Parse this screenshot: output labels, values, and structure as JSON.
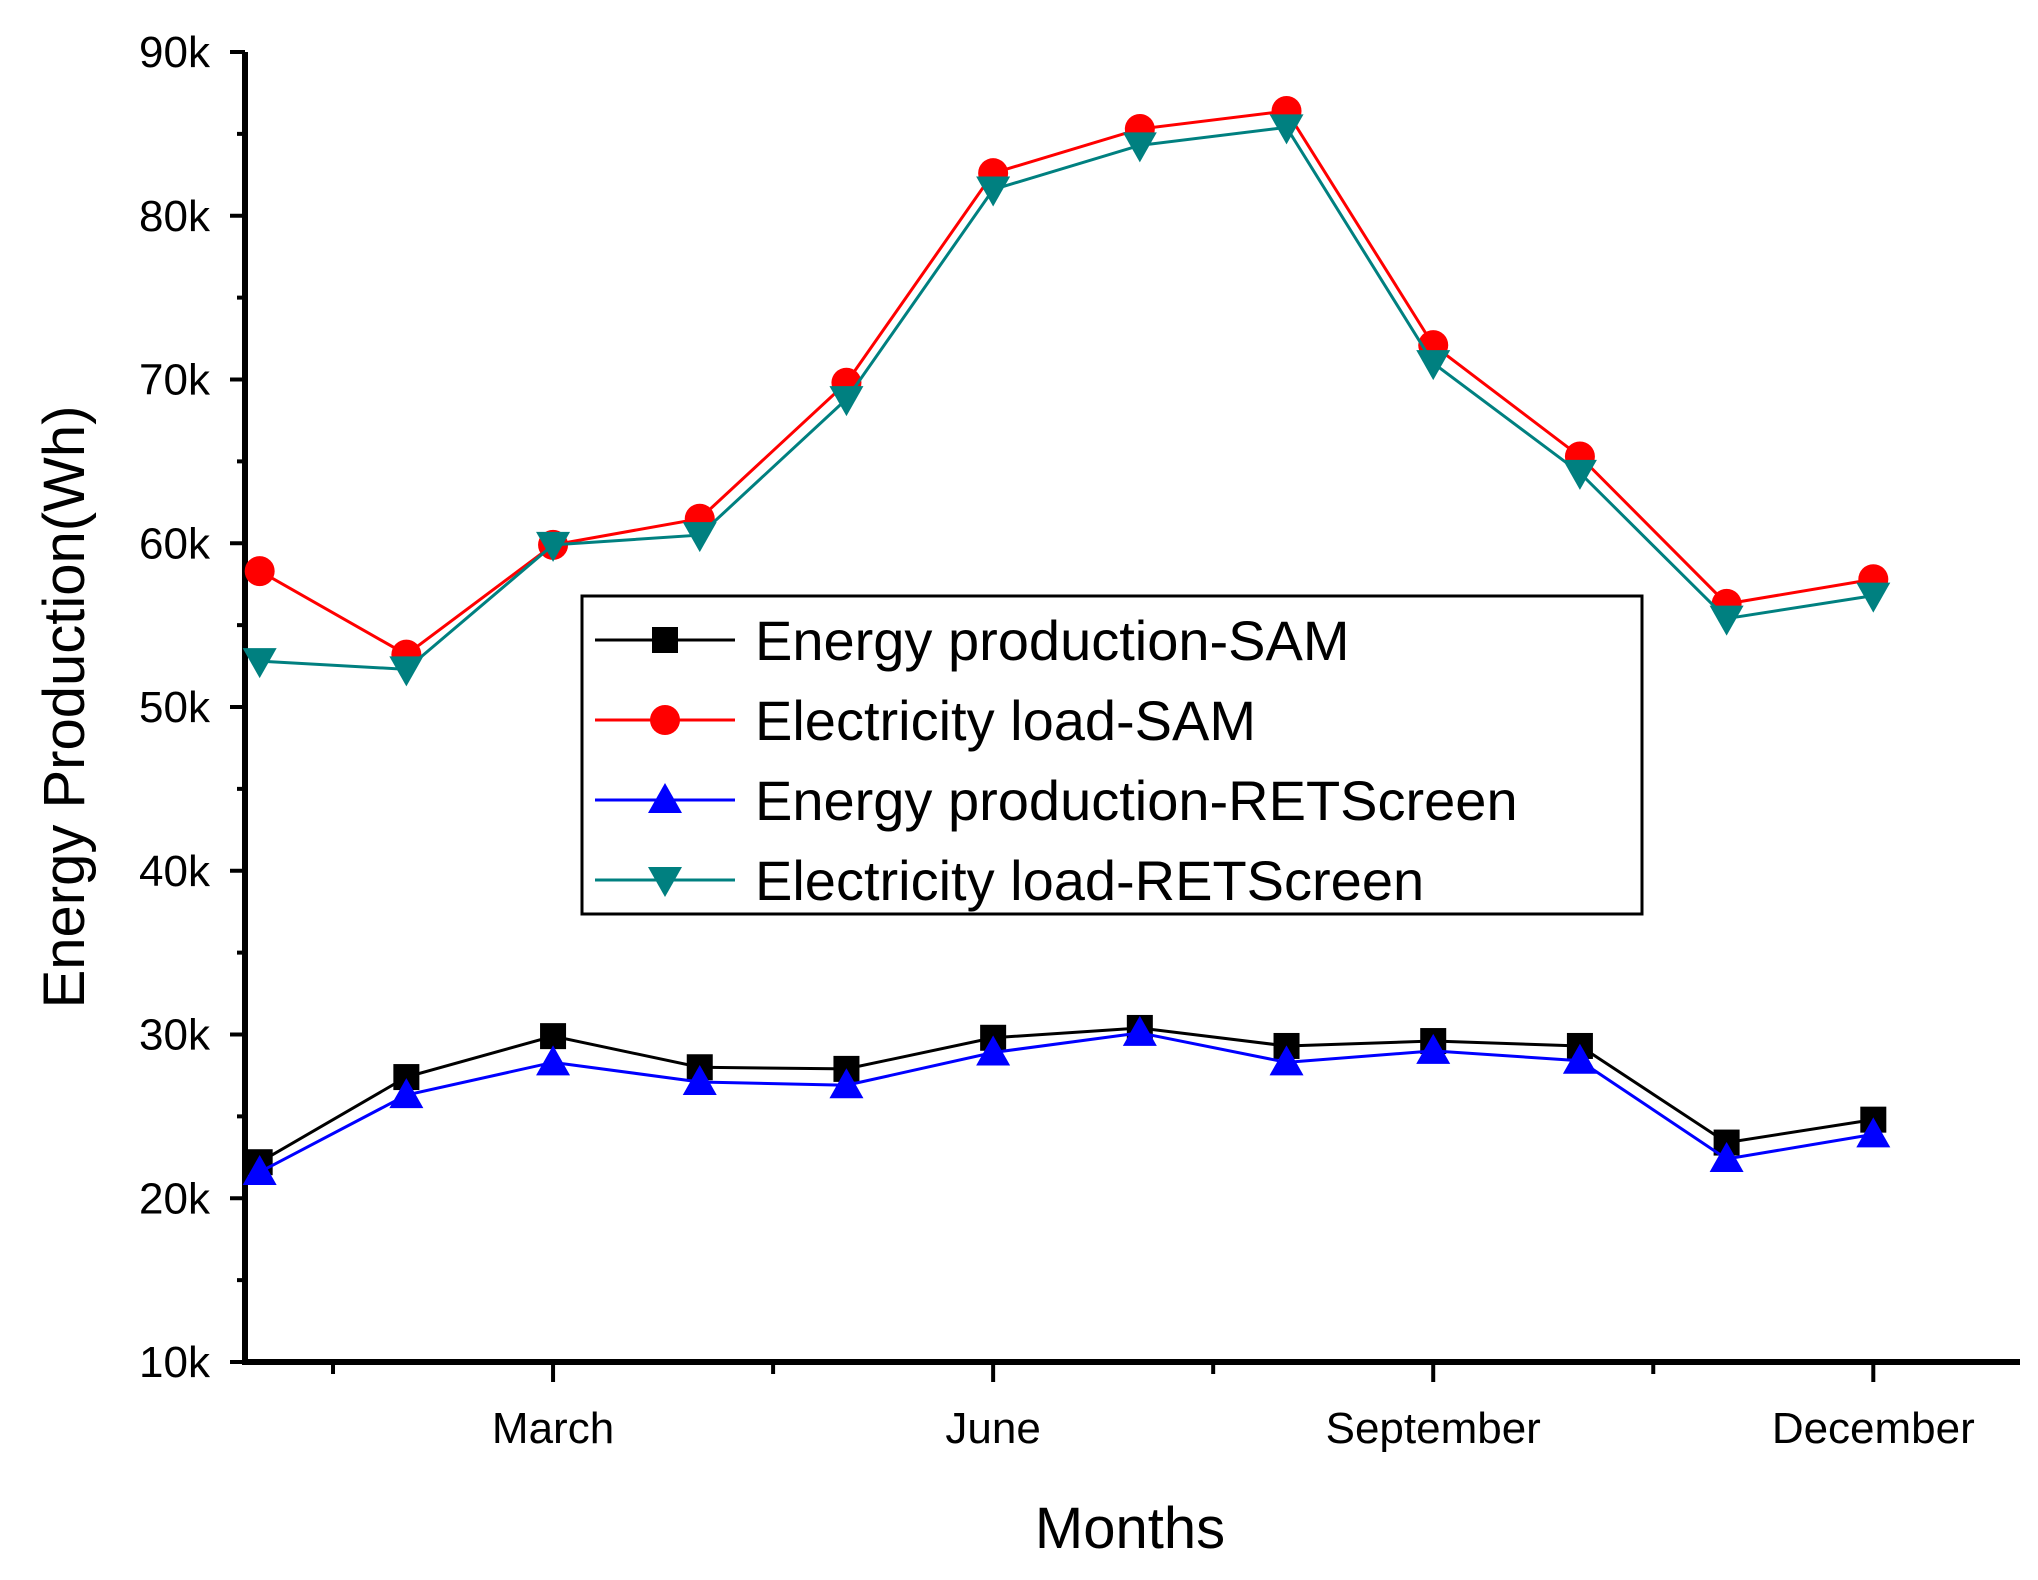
{
  "chart_data": {
    "type": "line",
    "title": "",
    "xlabel": "Months",
    "ylabel": "Energy Production(Wh)",
    "x": [
      1,
      2,
      3,
      4,
      5,
      6,
      7,
      8,
      9,
      10,
      11,
      12
    ],
    "xlim": [
      0.9,
      13.0
    ],
    "ylim": [
      10000,
      90000
    ],
    "x_ticks_labeled": [
      {
        "x": 3,
        "label": "March"
      },
      {
        "x": 6,
        "label": "June"
      },
      {
        "x": 9,
        "label": "September"
      },
      {
        "x": 12,
        "label": "December"
      }
    ],
    "x_minor_ticks": [
      1.5,
      4.5,
      7.5,
      10.5
    ],
    "y_ticks": [
      {
        "y": 10000,
        "label": "10k"
      },
      {
        "y": 20000,
        "label": "20k"
      },
      {
        "y": 30000,
        "label": "30k"
      },
      {
        "y": 40000,
        "label": "40k"
      },
      {
        "y": 50000,
        "label": "50k"
      },
      {
        "y": 60000,
        "label": "60k"
      },
      {
        "y": 70000,
        "label": "70k"
      },
      {
        "y": 80000,
        "label": "80k"
      },
      {
        "y": 90000,
        "label": "90k"
      }
    ],
    "grid": false,
    "legend_position": "center",
    "series": [
      {
        "name": "Energy production-SAM",
        "color": "#000000",
        "marker": "square",
        "values": [
          22200,
          27400,
          29900,
          28000,
          27900,
          29800,
          30400,
          29300,
          29600,
          29300,
          23400,
          24800
        ]
      },
      {
        "name": "Electricity load-SAM",
        "color": "#ff0000",
        "marker": "circle",
        "values": [
          58300,
          53200,
          59900,
          61500,
          69800,
          82600,
          85300,
          86400,
          72100,
          65300,
          56300,
          57800
        ]
      },
      {
        "name": "Energy production-RETScreen",
        "color": "#0000ff",
        "marker": "triangle-up",
        "values": [
          21600,
          26300,
          28300,
          27100,
          26900,
          28900,
          30100,
          28300,
          29000,
          28400,
          22400,
          23900
        ]
      },
      {
        "name": "Electricity load-RETScreen",
        "color": "#008080",
        "marker": "triangle-down",
        "values": [
          52800,
          52300,
          59900,
          60500,
          68800,
          81600,
          84300,
          85400,
          71000,
          64300,
          55400,
          56800
        ]
      }
    ]
  }
}
